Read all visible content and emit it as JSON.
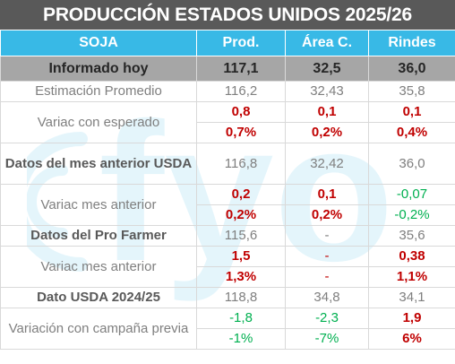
{
  "title": "PRODUCCIÓN ESTADOS UNIDOS 2025/26",
  "headers": [
    "SOJA",
    "Prod.",
    "Área C.",
    "Rindes"
  ],
  "watermark_text": "fyo",
  "rows": {
    "informado": {
      "label": "Informado hoy",
      "prod": "117,1",
      "area": "32,5",
      "rindes": "36,0"
    },
    "estimacion": {
      "label": "Estimación Promedio",
      "prod": "116,2",
      "area": "32,43",
      "rindes": "35,8"
    },
    "var_esperado": {
      "label": "Variac con esperado",
      "prod_abs": "0,8",
      "area_abs": "0,1",
      "rindes_abs": "0,1",
      "prod_pct": "0,7%",
      "area_pct": "0,2%",
      "rindes_pct": "0,4%"
    },
    "mes_anterior": {
      "label": "Datos del mes anterior USDA",
      "prod": "116,8",
      "area": "32,42",
      "rindes": "36,0"
    },
    "var_mes": {
      "label": "Variac mes anterior",
      "prod_abs": "0,2",
      "area_abs": "0,1",
      "rindes_abs": "-0,07",
      "prod_pct": "0,2%",
      "area_pct": "0,2%",
      "rindes_pct": "-0,2%"
    },
    "pro_farmer": {
      "label": "Datos del Pro Farmer",
      "prod": "115,6",
      "area": "-",
      "rindes": "35,6"
    },
    "var_pro": {
      "label": "Variac mes anterior",
      "prod_abs": "1,5",
      "area_abs": "-",
      "rindes_abs": "0,38",
      "prod_pct": "1,3%",
      "area_pct": "-",
      "rindes_pct": "1,1%"
    },
    "usda_prev": {
      "label": "Dato USDA 2024/25",
      "prod": "118,8",
      "area": "34,8",
      "rindes": "34,1"
    },
    "var_campana": {
      "label": "Variación con campaña previa",
      "prod_abs": "-1,8",
      "area_abs": "-2,3",
      "rindes_abs": "1,9",
      "prod_pct": "-1%",
      "area_pct": "-7%",
      "rindes_pct": "6%"
    }
  },
  "colors": {
    "header_bg": "#38b9e6",
    "title_bg": "#595959",
    "highlight_bg": "#a6a6a6",
    "positive": "#c00000",
    "negative": "#00b050"
  }
}
